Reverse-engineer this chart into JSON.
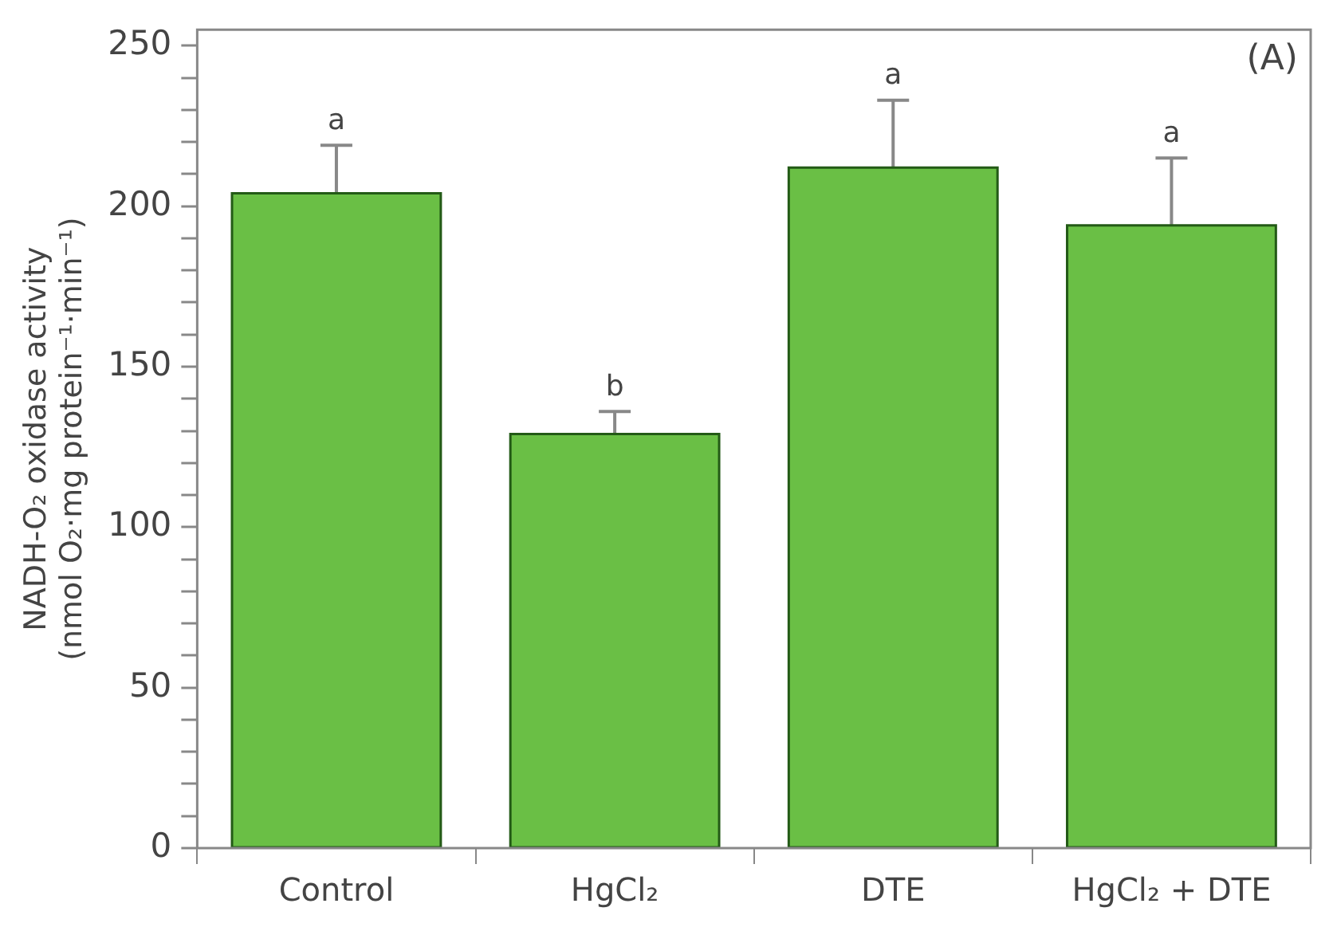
{
  "chart_data": {
    "type": "bar",
    "ylabel": "NADH-O₂ oxidase activity\n(nmol O₂·mg protein⁻¹·min⁻¹)",
    "categories": [
      "Control",
      "HgCl₂",
      "DTE",
      "HgCl₂ + DTE"
    ],
    "values": [
      204,
      129,
      212,
      194
    ],
    "errors": [
      15,
      7,
      21,
      21
    ],
    "color": "#6abf45",
    "ylim": [
      0,
      255
    ],
    "yticks": [
      0,
      {
        "value": 10,
        "label": null
      },
      {
        "value": 20,
        "label": null
      },
      {
        "value": 30,
        "label": null
      },
      {
        "value": 40,
        "label": null
      },
      50,
      {
        "value": 60,
        "label": null
      },
      {
        "value": 70,
        "label": null
      },
      {
        "value": 80,
        "label": null
      },
      {
        "value": 90,
        "label": null
      },
      100,
      {
        "value": 110,
        "label": null
      },
      {
        "value": 120,
        "label": null
      },
      {
        "value": 130,
        "label": null
      },
      {
        "value": 140,
        "label": null
      },
      150,
      {
        "value": 160,
        "label": null
      },
      {
        "value": 170,
        "label": null
      },
      {
        "value": 180,
        "label": null
      },
      {
        "value": 190,
        "label": null
      },
      200,
      {
        "value": 210,
        "label": null
      },
      {
        "value": 220,
        "label": null
      },
      {
        "value": 230,
        "label": null
      },
      {
        "value": 240,
        "label": null
      },
      250
    ],
    "grid": false,
    "legend": false,
    "value_labels": [
      "a",
      "b",
      "a",
      "a"
    ],
    "annotations": [
      "(A)"
    ]
  }
}
